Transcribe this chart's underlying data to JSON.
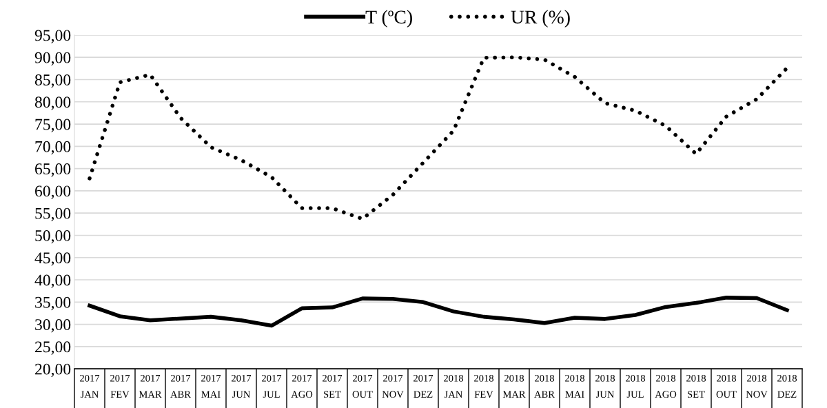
{
  "chart_data": {
    "type": "line",
    "categories": [
      "2017\nJAN",
      "2017\nFEV",
      "2017\nMAR",
      "2017\nABR",
      "2017\nMAI",
      "2017\nJUN",
      "2017\nJUL",
      "2017\nAGO",
      "2017\nSET",
      "2017\nOUT",
      "2017\nNOV",
      "2017\nDEZ",
      "2018\nJAN",
      "2018\nFEV",
      "2018\nMAR",
      "2018\nABR",
      "2018\nMAI",
      "2018\nJUN",
      "2018\nJUL",
      "2018\nAGO",
      "2018\nSET",
      "2018\nOUT",
      "2018\nNOV",
      "2018\nDEZ"
    ],
    "series": [
      {
        "name": "T (ºC)",
        "color": "#000000",
        "line_style": "solid",
        "values": [
          34.2,
          31.8,
          30.9,
          31.3,
          31.7,
          30.9,
          29.7,
          33.6,
          33.8,
          35.8,
          35.7,
          35.0,
          32.9,
          31.7,
          31.1,
          30.3,
          31.5,
          31.2,
          32.1,
          33.9,
          34.8,
          36.0,
          35.9,
          33.2
        ]
      },
      {
        "name": "UR (%)",
        "color": "#000000",
        "line_style": "dotted",
        "values": [
          62.8,
          84.4,
          86.1,
          76.4,
          69.8,
          66.9,
          63.1,
          56.1,
          56.1,
          53.7,
          59.1,
          66.3,
          73.5,
          89.9,
          90.0,
          89.5,
          85.6,
          79.7,
          78.0,
          74.6,
          68.3,
          76.7,
          80.6,
          87.6
        ]
      }
    ],
    "ylim": [
      20,
      95
    ],
    "yticks": [
      {
        "value": 20,
        "label": "20,00"
      },
      {
        "value": 25,
        "label": "25,00"
      },
      {
        "value": 30,
        "label": "30,00"
      },
      {
        "value": 35,
        "label": "35,00"
      },
      {
        "value": 40,
        "label": "40,00"
      },
      {
        "value": 45,
        "label": "45,00"
      },
      {
        "value": 50,
        "label": "50,00"
      },
      {
        "value": 55,
        "label": "55,00"
      },
      {
        "value": 60,
        "label": "60,00"
      },
      {
        "value": 65,
        "label": "65,00"
      },
      {
        "value": 70,
        "label": "70,00"
      },
      {
        "value": 75,
        "label": "75,00"
      },
      {
        "value": 80,
        "label": "80,00"
      },
      {
        "value": 85,
        "label": "85,00"
      },
      {
        "value": 90,
        "label": "90,00"
      },
      {
        "value": 95,
        "label": "95,00"
      }
    ],
    "grid": "y",
    "legend": "top",
    "marker": "none"
  }
}
